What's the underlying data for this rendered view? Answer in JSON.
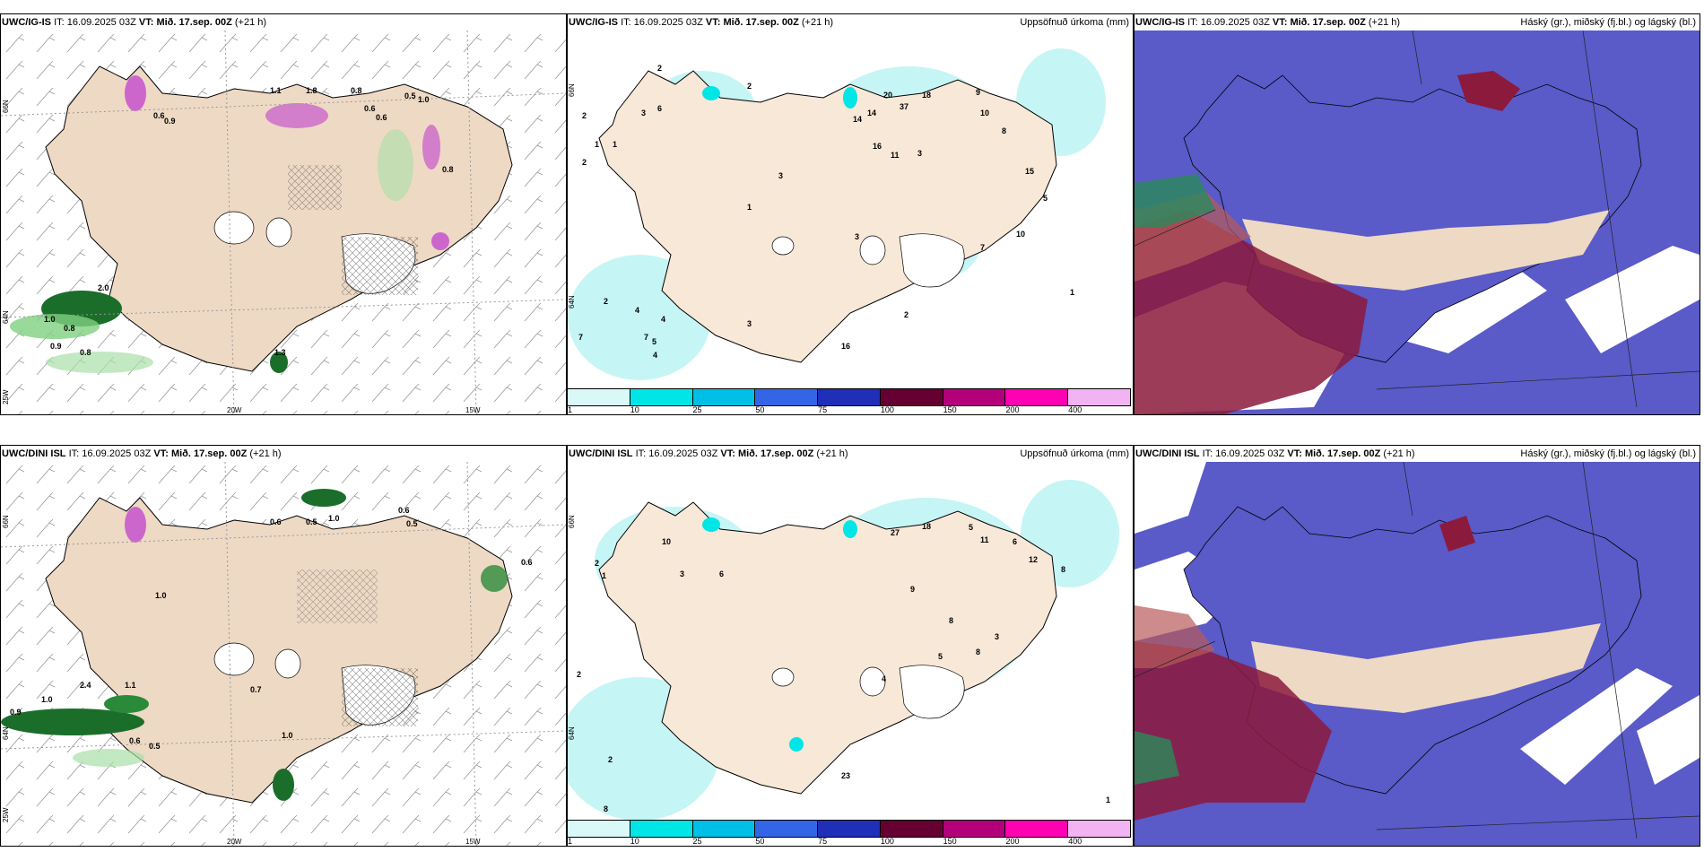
{
  "panels": [
    {
      "id": "p1",
      "model": "UWC/IG-IS",
      "it_label": "IT:",
      "it_value": "16.09.2025 03Z",
      "vt_label": "VT:",
      "vt_value": "Mið. 17.sep. 00Z",
      "lead": "(+21 h)",
      "right_title": "",
      "lat_labels": [
        "66N",
        "64N",
        "25W"
      ],
      "lon_labels": [
        "20W",
        "15W"
      ],
      "values": [
        "1.1",
        "1.8",
        "0.8",
        "0.6",
        "0.5",
        "1.0",
        "0.6",
        "0.9",
        "0.8",
        "0.6",
        "2.0",
        "1.0",
        "0.8",
        "0.9",
        "0.8",
        "1.3"
      ]
    },
    {
      "id": "p2",
      "model": "UWC/IG-IS",
      "it_label": "IT:",
      "it_value": "16.09.2025 03Z",
      "vt_label": "VT:",
      "vt_value": "Mið. 17.sep. 00Z",
      "lead": "(+21 h)",
      "right_title": "Uppsöfnuð úrkoma (mm)",
      "lat_labels": [
        "66N",
        "64N"
      ],
      "values": [
        "2",
        "2",
        "2",
        "6",
        "3",
        "1",
        "1",
        "2",
        "20",
        "14",
        "14",
        "16",
        "37",
        "18",
        "9",
        "10",
        "11",
        "3",
        "8",
        "15",
        "5",
        "2",
        "4",
        "4",
        "4",
        "5",
        "3",
        "7",
        "7",
        "10",
        "7",
        "3",
        "3",
        "16",
        "2",
        "1",
        "1"
      ],
      "colorbar": {
        "ticks": [
          "1",
          "10",
          "25",
          "50",
          "75",
          "100",
          "150",
          "200",
          "400"
        ],
        "colors": [
          "#d9f9f9",
          "#00e6e6",
          "#00bfe6",
          "#3366e6",
          "#1f2fb8",
          "#660033",
          "#b3007a",
          "#ff00b3",
          "#f2b3f2"
        ]
      }
    },
    {
      "id": "p3",
      "model": "UWC/IG-IS",
      "it_label": "IT:",
      "it_value": "16.09.2025 03Z",
      "vt_label": "VT:",
      "vt_value": "Mið. 17.sep. 00Z",
      "lead": "(+21 h)",
      "right_title": "Háský (gr.), miðský (fj.bl.) og lágský (bl.)"
    },
    {
      "id": "p4",
      "model": "UWC/DINI ISL",
      "it_label": "IT:",
      "it_value": "16.09.2025 03Z",
      "vt_label": "VT:",
      "vt_value": "Mið. 17.sep. 00Z",
      "lead": "(+21 h)",
      "right_title": "",
      "lat_labels": [
        "66N",
        "64N",
        "25W"
      ],
      "lon_labels": [
        "20W",
        "15W"
      ],
      "values": [
        "0.6",
        "0.5",
        "1.0",
        "0.6",
        "0.5",
        "1.0",
        "0.6",
        "1.1",
        "2.4",
        "1.0",
        "0.9",
        "0.7",
        "0.6",
        "0.5",
        "1.0"
      ]
    },
    {
      "id": "p5",
      "model": "UWC/DINI ISL",
      "it_label": "IT:",
      "it_value": "16.09.2025 03Z",
      "vt_label": "VT:",
      "vt_value": "Mið. 17.sep. 00Z",
      "lead": "(+21 h)",
      "right_title": "Uppsöfnuð úrkoma (mm)",
      "lat_labels": [
        "66N",
        "64N"
      ],
      "values": [
        "2",
        "10",
        "3",
        "6",
        "27",
        "18",
        "5",
        "11",
        "6",
        "12",
        "8",
        "9",
        "8",
        "5",
        "8",
        "3",
        "2",
        "4",
        "1",
        "2",
        "8",
        "23",
        "1"
      ],
      "colorbar": {
        "ticks": [
          "1",
          "10",
          "25",
          "50",
          "75",
          "100",
          "150",
          "200",
          "400"
        ],
        "colors": [
          "#d9f9f9",
          "#00e6e6",
          "#00bfe6",
          "#3366e6",
          "#1f2fb8",
          "#660033",
          "#b3007a",
          "#ff00b3",
          "#f2b3f2"
        ]
      }
    },
    {
      "id": "p6",
      "model": "UWC/DINI ISL",
      "it_label": "IT:",
      "it_value": "16.09.2025 03Z",
      "vt_label": "VT:",
      "vt_value": "Mið. 17.sep. 00Z",
      "lead": "(+21 h)",
      "right_title": "Háský (gr.), miðský (fj.bl.) og lágský (bl.)"
    }
  ]
}
